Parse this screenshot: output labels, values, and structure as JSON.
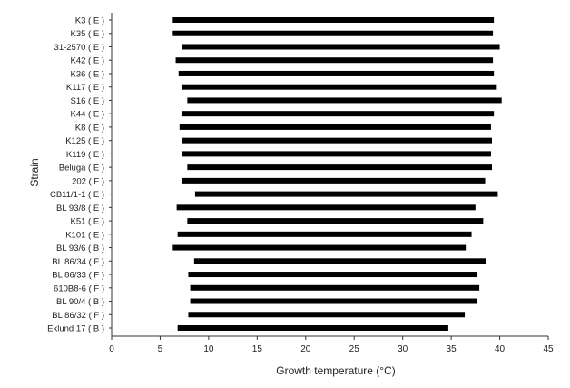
{
  "chart_data": {
    "type": "bar",
    "orientation": "horizontal-range",
    "title": "",
    "xlabel": "Growth temperature (°C)",
    "ylabel": "Strain",
    "xlim": [
      0,
      45
    ],
    "xticks": [
      "0",
      "5",
      "10",
      "15",
      "20",
      "25",
      "30",
      "35",
      "40",
      "45"
    ],
    "grid": false,
    "categories": [
      "K3 ( E )",
      "K35 ( E )",
      "31-2570 ( E )",
      "K42 ( E )",
      "K36 ( E )",
      "K117 ( E )",
      "S16 ( E )",
      "K44 ( E )",
      "K8 ( E )",
      "K125 ( E )",
      "K119 ( E )",
      "Beluga ( E )",
      "202 ( F )",
      "CB11/1-1 ( E )",
      "BL 93/8 ( E )",
      "K51 ( E )",
      "K101 ( E )",
      "BL 93/6 ( B )",
      "BL 86/34 ( F )",
      "BL 86/33 ( F )",
      "610B8-6 ( F )",
      "BL 90/4 ( B )",
      "BL 86/32 ( F )",
      "Eklund 17 ( B )"
    ],
    "min_values": [
      6.3,
      6.3,
      7.3,
      6.6,
      6.9,
      7.2,
      7.8,
      7.2,
      7.0,
      7.3,
      7.3,
      7.8,
      7.2,
      8.6,
      6.7,
      7.8,
      6.8,
      6.3,
      8.5,
      7.9,
      8.1,
      8.1,
      7.9,
      6.8
    ],
    "max_values": [
      39.4,
      39.3,
      40.0,
      39.3,
      39.4,
      39.7,
      40.2,
      39.4,
      39.1,
      39.2,
      39.1,
      39.2,
      38.5,
      39.8,
      37.5,
      38.3,
      37.1,
      36.5,
      38.6,
      37.7,
      37.9,
      37.7,
      36.4,
      34.7
    ]
  },
  "colors": {
    "bar": "#000000",
    "axis": "#333333",
    "text": "#222222"
  }
}
